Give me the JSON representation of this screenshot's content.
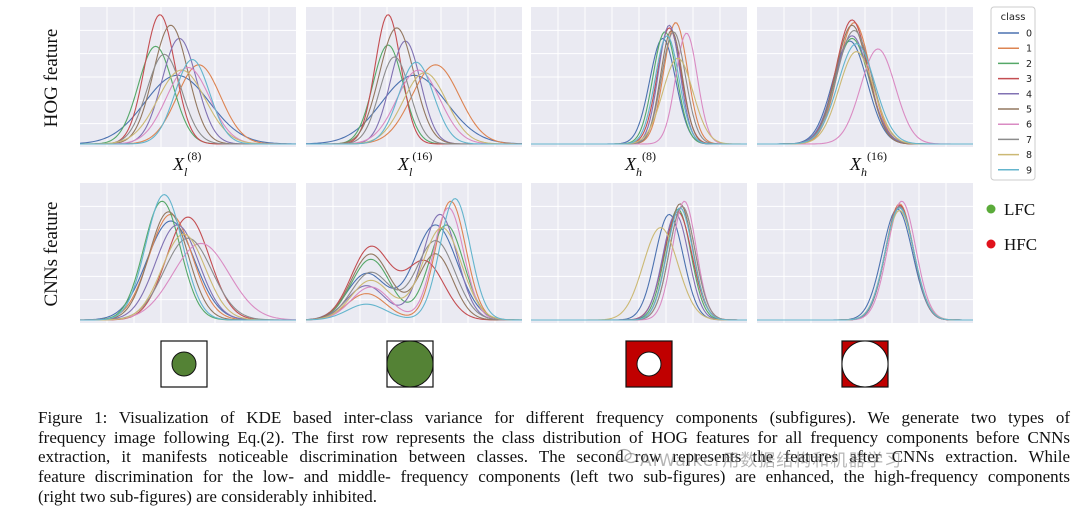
{
  "rows": [
    {
      "label": "HOG feature"
    },
    {
      "label": "CNNs feature"
    }
  ],
  "columns": [
    {
      "name": "X",
      "sub": "l",
      "sup": "(8)"
    },
    {
      "name": "X",
      "sub": "l",
      "sup": "(16)"
    },
    {
      "name": "X",
      "sub": "h",
      "sup": "(8)"
    },
    {
      "name": "X",
      "sub": "h",
      "sup": "(16)"
    }
  ],
  "legend": {
    "title": "class",
    "entries": [
      "0",
      "1",
      "2",
      "3",
      "4",
      "5",
      "6",
      "7",
      "8",
      "9"
    ],
    "colors": [
      "#4c72b0",
      "#dd8452",
      "#55a868",
      "#c44e52",
      "#8172b3",
      "#937860",
      "#da8bc3",
      "#8c8c8c",
      "#ccb974",
      "#64b5cd"
    ]
  },
  "frequency_legend": [
    {
      "label": "LFC",
      "color": "#5bab3a"
    },
    {
      "label": "HFC",
      "color": "#e0121c"
    }
  ],
  "frequency_icons": [
    {
      "type": "LFC",
      "fill_fraction": 0.26
    },
    {
      "type": "LFC",
      "fill_fraction": 0.5
    },
    {
      "type": "HFC",
      "hole_fraction": 0.26
    },
    {
      "type": "HFC",
      "hole_fraction": 0.5
    }
  ],
  "colors": {
    "plot_bg": "#eaeaf2",
    "grid": "#ffffff",
    "lfc_fill": "#548235",
    "hfc_fill": "#c00000"
  },
  "caption": [
    "Figure 1: Visualization of KDE based inter-class variance for different frequency components (subfigures). We generate two types of",
    "frequency image following Eq.(2). The first row represents the class distribution of HOG features for all frequency components before CNNs",
    "extraction, it manifests noticeable discrimination between classes. The second row represents the features after CNNs extraction. While",
    "feature discrimination for the low- and middle- frequency components (left two sub-figures) are enhanced, the high-frequency components",
    "(right two sub-figures) are considerably inhibited."
  ],
  "watermark": "AIWalker用数据结构和机器学习",
  "chart_data": [
    {
      "type": "area",
      "title": "",
      "xlabel": "X_l^(8)",
      "ylabel": "HOG feature",
      "row": 0,
      "col": 0,
      "grid": true,
      "series": [
        {
          "name": "0",
          "center": 0.45,
          "width": 0.15,
          "peak": 0.52
        },
        {
          "name": "1",
          "center": 0.55,
          "width": 0.1,
          "peak": 0.6
        },
        {
          "name": "2",
          "center": 0.35,
          "width": 0.08,
          "peak": 0.74
        },
        {
          "name": "3",
          "center": 0.37,
          "width": 0.07,
          "peak": 0.98
        },
        {
          "name": "4",
          "center": 0.46,
          "width": 0.08,
          "peak": 0.8
        },
        {
          "name": "5",
          "center": 0.42,
          "width": 0.08,
          "peak": 0.9
        },
        {
          "name": "6",
          "center": 0.5,
          "width": 0.1,
          "peak": 0.58
        },
        {
          "name": "7",
          "center": 0.39,
          "width": 0.08,
          "peak": 0.68
        },
        {
          "name": "8",
          "center": 0.47,
          "width": 0.11,
          "peak": 0.56
        },
        {
          "name": "9",
          "center": 0.52,
          "width": 0.08,
          "peak": 0.64
        }
      ]
    },
    {
      "type": "area",
      "title": "",
      "xlabel": "X_l^(16)",
      "ylabel": "",
      "row": 0,
      "col": 1,
      "grid": true,
      "series": [
        {
          "name": "0",
          "center": 0.5,
          "width": 0.15,
          "peak": 0.52
        },
        {
          "name": "1",
          "center": 0.6,
          "width": 0.11,
          "peak": 0.6
        },
        {
          "name": "2",
          "center": 0.38,
          "width": 0.07,
          "peak": 0.75
        },
        {
          "name": "3",
          "center": 0.38,
          "width": 0.06,
          "peak": 0.98
        },
        {
          "name": "4",
          "center": 0.46,
          "width": 0.07,
          "peak": 0.78
        },
        {
          "name": "5",
          "center": 0.42,
          "width": 0.08,
          "peak": 0.88
        },
        {
          "name": "6",
          "center": 0.52,
          "width": 0.1,
          "peak": 0.56
        },
        {
          "name": "7",
          "center": 0.41,
          "width": 0.07,
          "peak": 0.66
        },
        {
          "name": "8",
          "center": 0.55,
          "width": 0.1,
          "peak": 0.54
        },
        {
          "name": "9",
          "center": 0.51,
          "width": 0.08,
          "peak": 0.62
        }
      ]
    },
    {
      "type": "area",
      "title": "",
      "xlabel": "X_h^(8)",
      "ylabel": "",
      "row": 0,
      "col": 2,
      "grid": true,
      "series": [
        {
          "name": "0",
          "center": 0.61,
          "width": 0.06,
          "peak": 0.8
        },
        {
          "name": "1",
          "center": 0.67,
          "width": 0.055,
          "peak": 0.92
        },
        {
          "name": "2",
          "center": 0.62,
          "width": 0.055,
          "peak": 0.85
        },
        {
          "name": "3",
          "center": 0.64,
          "width": 0.055,
          "peak": 0.88
        },
        {
          "name": "4",
          "center": 0.64,
          "width": 0.05,
          "peak": 0.9
        },
        {
          "name": "5",
          "center": 0.65,
          "width": 0.05,
          "peak": 0.86
        },
        {
          "name": "6",
          "center": 0.72,
          "width": 0.05,
          "peak": 0.84
        },
        {
          "name": "7",
          "center": 0.66,
          "width": 0.055,
          "peak": 0.85
        },
        {
          "name": "8",
          "center": 0.68,
          "width": 0.07,
          "peak": 0.65
        },
        {
          "name": "9",
          "center": 0.63,
          "width": 0.055,
          "peak": 0.82
        }
      ]
    },
    {
      "type": "area",
      "title": "",
      "xlabel": "X_h^(16)",
      "ylabel": "",
      "row": 0,
      "col": 3,
      "grid": true,
      "series": [
        {
          "name": "0",
          "center": 0.43,
          "width": 0.08,
          "peak": 0.78
        },
        {
          "name": "1",
          "center": 0.45,
          "width": 0.075,
          "peak": 0.92
        },
        {
          "name": "2",
          "center": 0.44,
          "width": 0.08,
          "peak": 0.8
        },
        {
          "name": "3",
          "center": 0.44,
          "width": 0.075,
          "peak": 0.94
        },
        {
          "name": "4",
          "center": 0.44,
          "width": 0.08,
          "peak": 0.82
        },
        {
          "name": "5",
          "center": 0.44,
          "width": 0.075,
          "peak": 0.9
        },
        {
          "name": "6",
          "center": 0.56,
          "width": 0.08,
          "peak": 0.72
        },
        {
          "name": "7",
          "center": 0.45,
          "width": 0.08,
          "peak": 0.86
        },
        {
          "name": "8",
          "center": 0.46,
          "width": 0.08,
          "peak": 0.7
        },
        {
          "name": "9",
          "center": 0.46,
          "width": 0.085,
          "peak": 0.76
        }
      ]
    },
    {
      "type": "area",
      "title": "",
      "xlabel": "",
      "ylabel": "CNNs feature",
      "row": 1,
      "col": 0,
      "grid": true,
      "series": [
        {
          "name": "0",
          "center": 0.42,
          "width": 0.11,
          "peak": 0.75
        },
        {
          "name": "1",
          "center": 0.42,
          "width": 0.1,
          "peak": 0.8
        },
        {
          "name": "2",
          "center": 0.38,
          "width": 0.085,
          "peak": 0.9
        },
        {
          "name": "3",
          "center": 0.5,
          "width": 0.1,
          "peak": 0.78
        },
        {
          "name": "4",
          "center": 0.45,
          "width": 0.1,
          "peak": 0.72
        },
        {
          "name": "5",
          "center": 0.41,
          "width": 0.09,
          "peak": 0.82
        },
        {
          "name": "6",
          "center": 0.56,
          "width": 0.13,
          "peak": 0.58
        },
        {
          "name": "7",
          "center": 0.5,
          "width": 0.11,
          "peak": 0.62
        },
        {
          "name": "8",
          "center": 0.48,
          "width": 0.1,
          "peak": 0.65
        },
        {
          "name": "9",
          "center": 0.39,
          "width": 0.085,
          "peak": 0.95
        }
      ]
    },
    {
      "type": "area",
      "title": "",
      "xlabel": "",
      "ylabel": "",
      "row": 1,
      "col": 1,
      "grid": true,
      "series": [
        {
          "name": "0",
          "center": 0.6,
          "width": 0.1,
          "peak": 0.72,
          "center2": 0.28,
          "width2": 0.09,
          "peak2": 0.35
        },
        {
          "name": "1",
          "center": 0.67,
          "width": 0.07,
          "peak": 0.9,
          "center2": 0.28,
          "width2": 0.09,
          "peak2": 0.2
        },
        {
          "name": "2",
          "center": 0.65,
          "width": 0.08,
          "peak": 0.72,
          "center2": 0.3,
          "width2": 0.09,
          "peak2": 0.46
        },
        {
          "name": "3",
          "center": 0.55,
          "width": 0.09,
          "peak": 0.44,
          "center2": 0.3,
          "width2": 0.09,
          "peak2": 0.55
        },
        {
          "name": "4",
          "center": 0.62,
          "width": 0.08,
          "peak": 0.8,
          "center2": 0.28,
          "width2": 0.09,
          "peak2": 0.26
        },
        {
          "name": "5",
          "center": 0.6,
          "width": 0.08,
          "peak": 0.5,
          "center2": 0.3,
          "width2": 0.09,
          "peak2": 0.5
        },
        {
          "name": "6",
          "center": 0.66,
          "width": 0.07,
          "peak": 0.85,
          "center2": 0.3,
          "width2": 0.09,
          "peak2": 0.25
        },
        {
          "name": "7",
          "center": 0.6,
          "width": 0.09,
          "peak": 0.6,
          "center2": 0.3,
          "width2": 0.09,
          "peak2": 0.36
        },
        {
          "name": "8",
          "center": 0.63,
          "width": 0.09,
          "peak": 0.7,
          "center2": 0.3,
          "width2": 0.09,
          "peak2": 0.3
        },
        {
          "name": "9",
          "center": 0.69,
          "width": 0.07,
          "peak": 0.92,
          "center2": 0.28,
          "width2": 0.09,
          "peak2": 0.12
        }
      ]
    },
    {
      "type": "area",
      "title": "",
      "xlabel": "",
      "ylabel": "",
      "row": 1,
      "col": 2,
      "grid": true,
      "series": [
        {
          "name": "0",
          "center": 0.64,
          "width": 0.065,
          "peak": 0.8
        },
        {
          "name": "1",
          "center": 0.7,
          "width": 0.06,
          "peak": 0.86
        },
        {
          "name": "2",
          "center": 0.68,
          "width": 0.06,
          "peak": 0.84
        },
        {
          "name": "3",
          "center": 0.68,
          "width": 0.065,
          "peak": 0.82
        },
        {
          "name": "4",
          "center": 0.67,
          "width": 0.06,
          "peak": 0.8
        },
        {
          "name": "5",
          "center": 0.69,
          "width": 0.06,
          "peak": 0.88
        },
        {
          "name": "6",
          "center": 0.71,
          "width": 0.055,
          "peak": 0.9
        },
        {
          "name": "7",
          "center": 0.7,
          "width": 0.06,
          "peak": 0.86
        },
        {
          "name": "8",
          "center": 0.6,
          "width": 0.08,
          "peak": 0.7
        },
        {
          "name": "9",
          "center": 0.69,
          "width": 0.06,
          "peak": 0.85
        }
      ]
    },
    {
      "type": "area",
      "title": "",
      "xlabel": "",
      "ylabel": "",
      "row": 1,
      "col": 3,
      "grid": true,
      "series": [
        {
          "name": "0",
          "center": 0.65,
          "width": 0.07,
          "peak": 0.84
        },
        {
          "name": "1",
          "center": 0.66,
          "width": 0.065,
          "peak": 0.88
        },
        {
          "name": "2",
          "center": 0.66,
          "width": 0.065,
          "peak": 0.86
        },
        {
          "name": "3",
          "center": 0.66,
          "width": 0.065,
          "peak": 0.87
        },
        {
          "name": "4",
          "center": 0.66,
          "width": 0.065,
          "peak": 0.86
        },
        {
          "name": "5",
          "center": 0.66,
          "width": 0.066,
          "peak": 0.85
        },
        {
          "name": "6",
          "center": 0.67,
          "width": 0.065,
          "peak": 0.9
        },
        {
          "name": "7",
          "center": 0.66,
          "width": 0.066,
          "peak": 0.86
        },
        {
          "name": "8",
          "center": 0.66,
          "width": 0.068,
          "peak": 0.83
        },
        {
          "name": "9",
          "center": 0.66,
          "width": 0.067,
          "peak": 0.85
        }
      ]
    }
  ]
}
